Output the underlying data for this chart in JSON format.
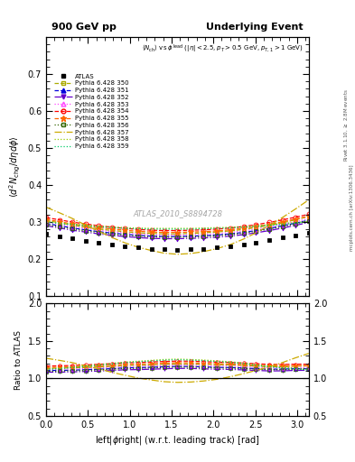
{
  "title_left": "900 GeV pp",
  "title_right": "Underlying Event",
  "subtitle": "<N_{ch}> vs \\phi^{lead} (|\\eta| < 2.5, p_T > 0.5 GeV, p_{T,1} > 1 GeV)",
  "xlabel": "left|\\phi|right| (w.r.t. leading track) [rad]",
  "ylabel_main": "\\langle d^2 N_{chg}/d\\eta d\\phi \\rangle",
  "ylabel_ratio": "Ratio to ATLAS",
  "watermark": "ATLAS_2010_S8894728",
  "right_label1": "Rivet 3.1.10, \\geq 2.8M events",
  "right_label2": "mcplots.cern.ch [arXiv:1306.3436]",
  "xlim": [
    0,
    3.14159
  ],
  "ylim_main": [
    0.1,
    0.8
  ],
  "ylim_ratio": [
    0.5,
    2.0
  ],
  "yticks_main": [
    0.1,
    0.2,
    0.3,
    0.4,
    0.5,
    0.6,
    0.7
  ],
  "yticks_ratio": [
    0.5,
    1.0,
    1.5,
    2.0
  ],
  "series": [
    {
      "label": "ATLAS",
      "color": "#000000",
      "marker": "s",
      "markersize": 3.5,
      "linestyle": "none",
      "filled": true,
      "pts_x": [
        0.0,
        0.16,
        0.31,
        0.47,
        0.63,
        0.79,
        0.94,
        1.1,
        1.26,
        1.41,
        1.57,
        1.73,
        1.88,
        2.04,
        2.2,
        2.36,
        2.51,
        2.67,
        2.83,
        2.98,
        3.14
      ],
      "pts_y": [
        0.268,
        0.262,
        0.256,
        0.25,
        0.244,
        0.239,
        0.234,
        0.231,
        0.228,
        0.226,
        0.225,
        0.226,
        0.228,
        0.231,
        0.234,
        0.239,
        0.245,
        0.252,
        0.258,
        0.263,
        0.27
      ]
    },
    {
      "label": "Pythia 6.428 350",
      "color": "#aaaa00",
      "marker": "s",
      "markersize": 3.5,
      "linestyle": "--",
      "filled": false,
      "pts_x": [
        0.0,
        0.16,
        0.31,
        0.47,
        0.63,
        0.79,
        0.94,
        1.1,
        1.26,
        1.41,
        1.57,
        1.73,
        1.88,
        2.04,
        2.2,
        2.36,
        2.51,
        2.67,
        2.83,
        2.98,
        3.14
      ],
      "pts_y": [
        0.304,
        0.298,
        0.292,
        0.286,
        0.281,
        0.277,
        0.274,
        0.271,
        0.269,
        0.268,
        0.268,
        0.269,
        0.271,
        0.273,
        0.276,
        0.28,
        0.285,
        0.291,
        0.298,
        0.306,
        0.315
      ]
    },
    {
      "label": "Pythia 6.428 351",
      "color": "#0000dd",
      "marker": "^",
      "markersize": 3.5,
      "linestyle": "--",
      "filled": true,
      "pts_x": [
        0.0,
        0.16,
        0.31,
        0.47,
        0.63,
        0.79,
        0.94,
        1.1,
        1.26,
        1.41,
        1.57,
        1.73,
        1.88,
        2.04,
        2.2,
        2.36,
        2.51,
        2.67,
        2.83,
        2.98,
        3.14
      ],
      "pts_y": [
        0.296,
        0.29,
        0.284,
        0.279,
        0.274,
        0.27,
        0.267,
        0.264,
        0.262,
        0.261,
        0.261,
        0.262,
        0.263,
        0.265,
        0.268,
        0.272,
        0.277,
        0.283,
        0.29,
        0.297,
        0.305
      ]
    },
    {
      "label": "Pythia 6.428 352",
      "color": "#6600cc",
      "marker": "v",
      "markersize": 3.5,
      "linestyle": "-.",
      "filled": true,
      "pts_x": [
        0.0,
        0.16,
        0.31,
        0.47,
        0.63,
        0.79,
        0.94,
        1.1,
        1.26,
        1.41,
        1.57,
        1.73,
        1.88,
        2.04,
        2.2,
        2.36,
        2.51,
        2.67,
        2.83,
        2.98,
        3.14
      ],
      "pts_y": [
        0.29,
        0.284,
        0.278,
        0.273,
        0.268,
        0.264,
        0.261,
        0.258,
        0.256,
        0.255,
        0.255,
        0.256,
        0.257,
        0.259,
        0.262,
        0.266,
        0.271,
        0.277,
        0.284,
        0.291,
        0.299
      ]
    },
    {
      "label": "Pythia 6.428 353",
      "color": "#ff44ff",
      "marker": "^",
      "markersize": 3.5,
      "linestyle": ":",
      "filled": false,
      "pts_x": [
        0.0,
        0.16,
        0.31,
        0.47,
        0.63,
        0.79,
        0.94,
        1.1,
        1.26,
        1.41,
        1.57,
        1.73,
        1.88,
        2.04,
        2.2,
        2.36,
        2.51,
        2.67,
        2.83,
        2.98,
        3.14
      ],
      "pts_y": [
        0.3,
        0.294,
        0.288,
        0.283,
        0.278,
        0.274,
        0.271,
        0.268,
        0.266,
        0.265,
        0.265,
        0.266,
        0.267,
        0.269,
        0.272,
        0.276,
        0.281,
        0.287,
        0.294,
        0.301,
        0.309
      ]
    },
    {
      "label": "Pythia 6.428 354",
      "color": "#ff0000",
      "marker": "o",
      "markersize": 3.5,
      "linestyle": "--",
      "filled": false,
      "pts_x": [
        0.0,
        0.16,
        0.31,
        0.47,
        0.63,
        0.79,
        0.94,
        1.1,
        1.26,
        1.41,
        1.57,
        1.73,
        1.88,
        2.04,
        2.2,
        2.36,
        2.51,
        2.67,
        2.83,
        2.98,
        3.14
      ],
      "pts_y": [
        0.312,
        0.306,
        0.3,
        0.295,
        0.29,
        0.286,
        0.283,
        0.28,
        0.278,
        0.277,
        0.277,
        0.278,
        0.279,
        0.281,
        0.284,
        0.288,
        0.293,
        0.299,
        0.306,
        0.313,
        0.321
      ]
    },
    {
      "label": "Pythia 6.428 355",
      "color": "#ff6600",
      "marker": "*",
      "markersize": 4.5,
      "linestyle": "--",
      "filled": true,
      "pts_x": [
        0.0,
        0.16,
        0.31,
        0.47,
        0.63,
        0.79,
        0.94,
        1.1,
        1.26,
        1.41,
        1.57,
        1.73,
        1.88,
        2.04,
        2.2,
        2.36,
        2.51,
        2.67,
        2.83,
        2.98,
        3.14
      ],
      "pts_y": [
        0.307,
        0.301,
        0.295,
        0.29,
        0.285,
        0.281,
        0.278,
        0.275,
        0.273,
        0.272,
        0.272,
        0.273,
        0.274,
        0.276,
        0.279,
        0.283,
        0.288,
        0.294,
        0.301,
        0.308,
        0.316
      ]
    },
    {
      "label": "Pythia 6.428 356",
      "color": "#336600",
      "marker": "s",
      "markersize": 3.5,
      "linestyle": ":",
      "filled": false,
      "pts_x": [
        0.0,
        0.16,
        0.31,
        0.47,
        0.63,
        0.79,
        0.94,
        1.1,
        1.26,
        1.41,
        1.57,
        1.73,
        1.88,
        2.04,
        2.2,
        2.36,
        2.51,
        2.67,
        2.83,
        2.98,
        3.14
      ],
      "pts_y": [
        0.293,
        0.287,
        0.282,
        0.276,
        0.272,
        0.268,
        0.265,
        0.262,
        0.26,
        0.259,
        0.259,
        0.26,
        0.261,
        0.263,
        0.266,
        0.27,
        0.275,
        0.281,
        0.288,
        0.295,
        0.303
      ]
    },
    {
      "label": "Pythia 6.428 357",
      "color": "#ccaa00",
      "marker": "none",
      "markersize": 0,
      "linestyle": "-.",
      "filled": false,
      "pts_x": [
        0.0,
        0.16,
        0.31,
        0.47,
        0.63,
        0.79,
        0.94,
        1.1,
        1.26,
        1.41,
        1.57,
        1.73,
        1.88,
        2.04,
        2.2,
        2.36,
        2.51,
        2.67,
        2.83,
        2.98,
        3.14
      ],
      "pts_y": [
        0.34,
        0.325,
        0.31,
        0.292,
        0.275,
        0.258,
        0.244,
        0.232,
        0.223,
        0.216,
        0.213,
        0.215,
        0.22,
        0.228,
        0.239,
        0.254,
        0.271,
        0.291,
        0.313,
        0.335,
        0.36
      ]
    },
    {
      "label": "Pythia 6.428 358",
      "color": "#99cc00",
      "marker": "none",
      "markersize": 0,
      "linestyle": ":",
      "filled": false,
      "pts_x": [
        0.0,
        0.16,
        0.31,
        0.47,
        0.63,
        0.79,
        0.94,
        1.1,
        1.26,
        1.41,
        1.57,
        1.73,
        1.88,
        2.04,
        2.2,
        2.36,
        2.51,
        2.67,
        2.83,
        2.98,
        3.14
      ],
      "pts_y": [
        0.302,
        0.298,
        0.295,
        0.292,
        0.289,
        0.287,
        0.285,
        0.284,
        0.283,
        0.283,
        0.283,
        0.283,
        0.284,
        0.285,
        0.286,
        0.288,
        0.29,
        0.293,
        0.296,
        0.299,
        0.302
      ]
    },
    {
      "label": "Pythia 6.428 359",
      "color": "#00cc66",
      "marker": "none",
      "markersize": 0,
      "linestyle": ":",
      "filled": false,
      "pts_x": [
        0.0,
        0.16,
        0.31,
        0.47,
        0.63,
        0.79,
        0.94,
        1.1,
        1.26,
        1.41,
        1.57,
        1.73,
        1.88,
        2.04,
        2.2,
        2.36,
        2.51,
        2.67,
        2.83,
        2.98,
        3.14
      ],
      "pts_y": [
        0.3,
        0.296,
        0.293,
        0.29,
        0.287,
        0.285,
        0.283,
        0.282,
        0.281,
        0.281,
        0.281,
        0.281,
        0.282,
        0.283,
        0.284,
        0.286,
        0.288,
        0.291,
        0.294,
        0.297,
        0.3
      ]
    }
  ]
}
